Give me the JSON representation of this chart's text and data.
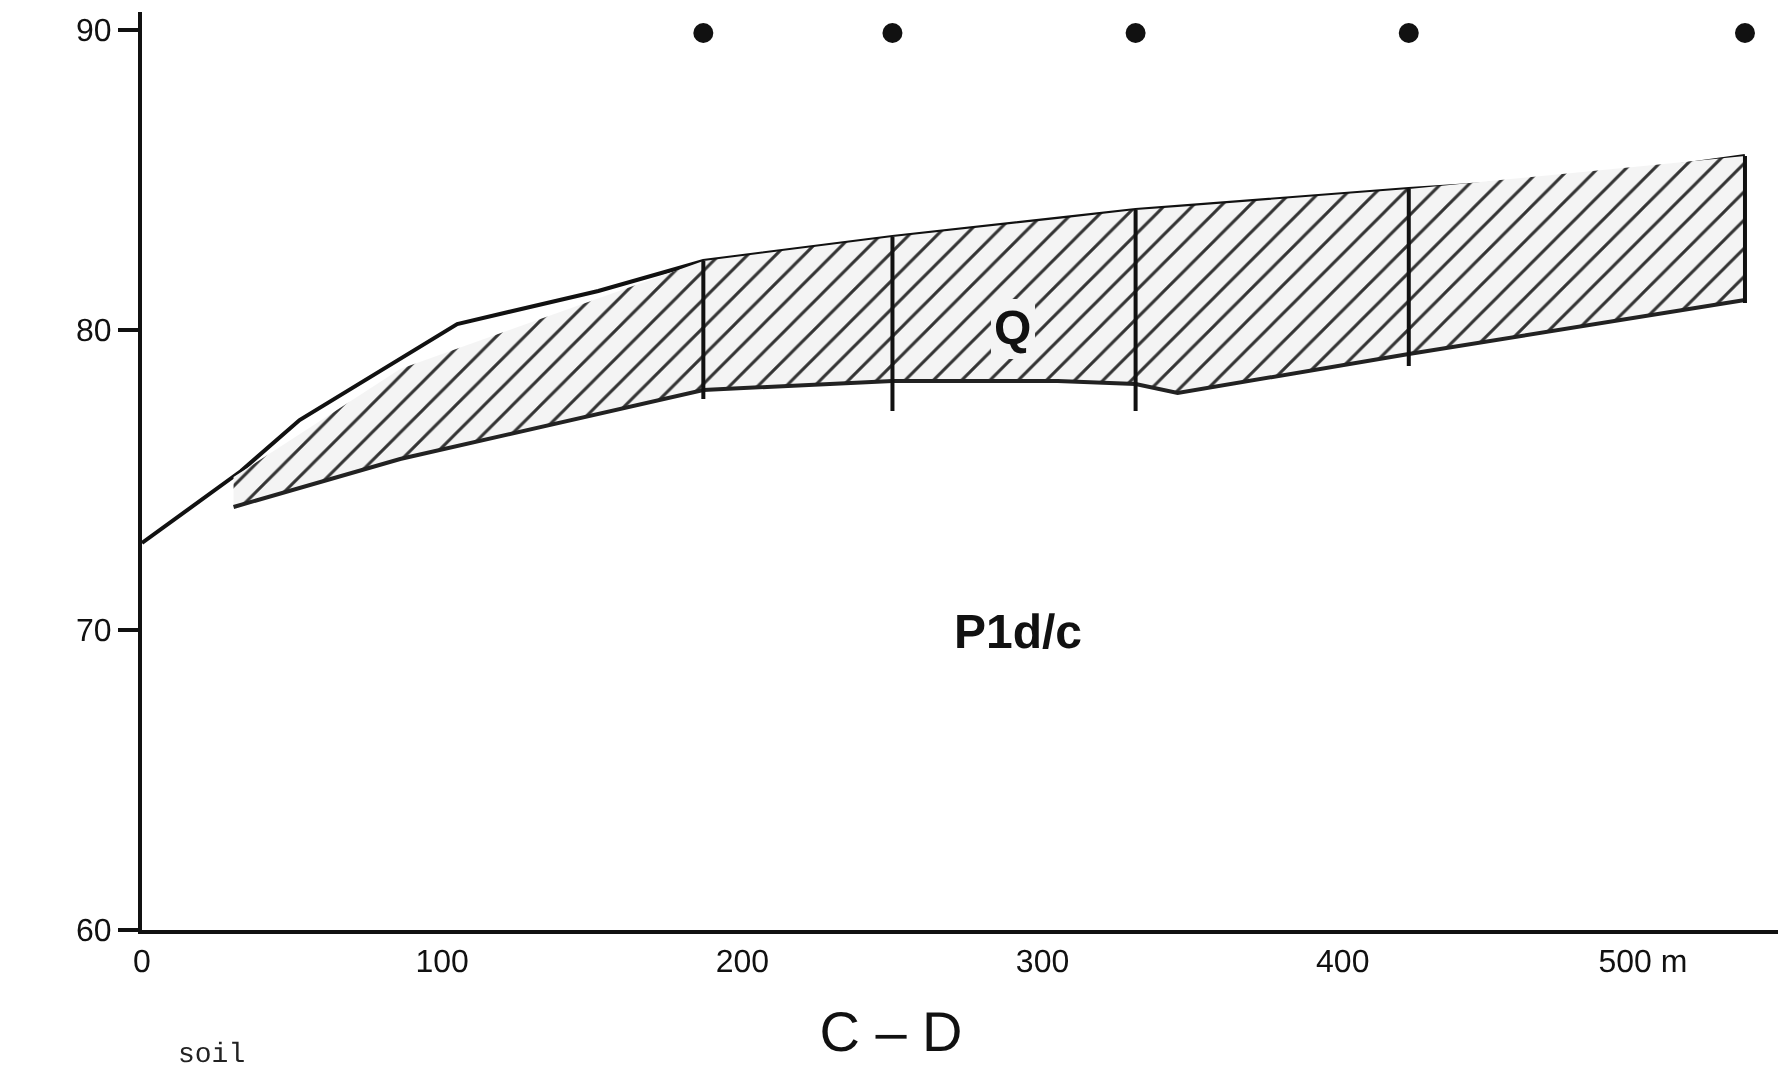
{
  "chart_data": {
    "type": "line",
    "title": "C – D",
    "xlim": [
      0,
      545
    ],
    "ylim": [
      60,
      90.6
    ],
    "xticks": [
      0,
      100,
      200,
      300,
      400,
      {
        "value": 500,
        "label": "500 m"
      }
    ],
    "yticks": [
      60,
      70,
      80,
      90
    ],
    "grid": false,
    "series": [
      {
        "type": "line",
        "color": "#111111",
        "x": [
          0,
          33,
          52.5,
          105,
          152,
          187,
          250,
          331,
          422,
          484,
          534
        ],
        "values": [
          72.9,
          75.3,
          77,
          80.2,
          81.3,
          82.3,
          83.1,
          84,
          84.7,
          85.1,
          85.8
        ]
      },
      {
        "type": "line",
        "color": "#222222",
        "x": [
          30.5,
          86,
          187,
          250,
          305,
          331,
          345,
          422,
          534
        ],
        "values": [
          74.1,
          75.7,
          78,
          78.3,
          78.3,
          78.2,
          77.9,
          79.2,
          81
        ],
        "lower": [
          74.1,
          75.7,
          78,
          78.3,
          78.3,
          78.2,
          77.9,
          79.2,
          81
        ],
        "upper": [
          75.1,
          78.7,
          82.3,
          83.1,
          83.7,
          84,
          84.1,
          84.7,
          85.8
        ]
      },
      {
        "color": "#111111",
        "x": [
          187,
          187,
          null,
          250,
          250,
          null,
          331,
          331,
          null,
          422,
          422,
          null,
          534,
          534
        ],
        "values": [
          82.3,
          77.7,
          null,
          83.1,
          77.3,
          null,
          84,
          77.3,
          null,
          84.7,
          78.8,
          null,
          85.8,
          80.9
        ]
      },
      {
        "type": "scatter",
        "color": "#111111",
        "marker": "circle",
        "x": [
          187,
          250,
          331,
          422,
          534
        ],
        "values": [
          89.9,
          89.9,
          89.9,
          89.9,
          89.9
        ]
      }
    ],
    "annotations": [
      "Q",
      "P1d/c",
      "soil"
    ]
  }
}
